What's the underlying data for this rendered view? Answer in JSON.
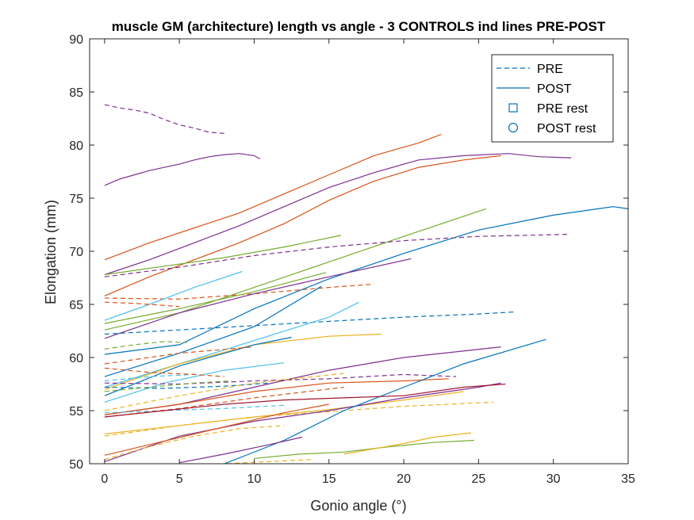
{
  "chart_data": {
    "type": "line",
    "title": "muscle GM (architecture) length vs angle - 3 CONTROLS ind lines PRE-POST",
    "xlabel": "Gonio angle (°)",
    "ylabel": "Elongation (mm)",
    "xlim": [
      -1,
      35
    ],
    "ylim": [
      50,
      90
    ],
    "xticks": [
      0,
      5,
      10,
      15,
      20,
      25,
      30,
      35
    ],
    "yticks": [
      50,
      55,
      60,
      65,
      70,
      75,
      80,
      85,
      90
    ],
    "grid": false,
    "legend_position": "top-right",
    "legend": [
      {
        "label": "PRE",
        "style": "dashed",
        "marker": "none",
        "color": "#0072BD"
      },
      {
        "label": "POST",
        "style": "solid",
        "marker": "none",
        "color": "#0072BD"
      },
      {
        "label": "PRE rest",
        "style": "none",
        "marker": "square",
        "color": "#0072BD"
      },
      {
        "label": "POST rest",
        "style": "none",
        "marker": "circle",
        "color": "#0072BD"
      }
    ],
    "series": [
      {
        "color": "#7E2F8E",
        "style": "dashed",
        "x": [
          0,
          1,
          2,
          3,
          4,
          5,
          6,
          7,
          8
        ],
        "y": [
          83.8,
          83.5,
          83.3,
          83.0,
          82.4,
          81.9,
          81.6,
          81.2,
          81.1
        ]
      },
      {
        "color": "#7E2F8E",
        "style": "solid",
        "x": [
          0,
          1,
          2,
          3,
          4,
          5,
          6,
          7,
          8,
          9,
          10,
          10.4
        ],
        "y": [
          76.2,
          76.8,
          77.2,
          77.6,
          77.9,
          78.2,
          78.6,
          78.9,
          79.1,
          79.2,
          79.0,
          78.7
        ]
      },
      {
        "color": "#D95319",
        "style": "solid",
        "x": [
          0,
          3,
          6,
          9,
          12,
          15,
          18,
          21,
          22.5
        ],
        "y": [
          69.2,
          70.8,
          72.2,
          73.6,
          75.4,
          77.2,
          79.0,
          80.2,
          81.0
        ]
      },
      {
        "color": "#7E2F8E",
        "style": "solid",
        "x": [
          0,
          3,
          6,
          9,
          12,
          15,
          18,
          21,
          24,
          27,
          29,
          31.2
        ],
        "y": [
          67.8,
          69.2,
          70.8,
          72.4,
          74.2,
          76.0,
          77.4,
          78.6,
          79.0,
          79.2,
          78.9,
          78.8
        ]
      },
      {
        "color": "#D95319",
        "style": "solid",
        "x": [
          0,
          3,
          6,
          9,
          12,
          15,
          18,
          21,
          24,
          26.5
        ],
        "y": [
          65.8,
          67.6,
          69.2,
          70.8,
          72.6,
          74.8,
          76.6,
          77.9,
          78.6,
          79.0
        ]
      },
      {
        "color": "#77AC30",
        "style": "solid",
        "x": [
          0,
          5,
          10,
          15,
          20,
          25.5
        ],
        "y": [
          62.6,
          64.2,
          66.6,
          69.0,
          71.4,
          74.0
        ]
      },
      {
        "color": "#0072BD",
        "style": "solid",
        "x": [
          0,
          5,
          10,
          15,
          20,
          25,
          30,
          34,
          35
        ],
        "y": [
          60.3,
          61.2,
          64.6,
          67.4,
          69.8,
          72.0,
          73.4,
          74.2,
          74.0
        ]
      },
      {
        "color": "#7E2F8E",
        "style": "dashed",
        "x": [
          0,
          5,
          10,
          15,
          20,
          25,
          31
        ],
        "y": [
          67.6,
          68.5,
          69.6,
          70.4,
          71.0,
          71.4,
          71.6
        ]
      },
      {
        "color": "#77AC30",
        "style": "solid",
        "x": [
          0,
          4,
          8,
          12,
          15.8
        ],
        "y": [
          67.8,
          68.6,
          69.4,
          70.4,
          71.5
        ]
      },
      {
        "color": "#D95319",
        "style": "dashed",
        "x": [
          0,
          5,
          10,
          15,
          18
        ],
        "y": [
          65.6,
          65.5,
          66.0,
          66.6,
          66.9
        ]
      },
      {
        "color": "#4DBEEE",
        "style": "solid",
        "x": [
          0,
          3,
          6,
          9.2
        ],
        "y": [
          63.5,
          65.0,
          66.6,
          68.1
        ]
      },
      {
        "color": "#7E2F8E",
        "style": "solid",
        "x": [
          0,
          5,
          10,
          15,
          20.5
        ],
        "y": [
          61.8,
          64.2,
          66.0,
          67.6,
          69.3
        ]
      },
      {
        "color": "#77AC30",
        "style": "solid",
        "x": [
          0,
          5,
          10,
          14.8
        ],
        "y": [
          63.2,
          64.6,
          66.2,
          68.0
        ]
      },
      {
        "color": "#D95319",
        "style": "dashed",
        "x": [
          0,
          2,
          5
        ],
        "y": [
          65.2,
          65.1,
          64.8
        ]
      },
      {
        "color": "#0072BD",
        "style": "solid",
        "x": [
          0,
          5,
          10,
          14.5
        ],
        "y": [
          58.2,
          60.4,
          62.9,
          66.7
        ]
      },
      {
        "color": "#0072BD",
        "style": "dashed",
        "x": [
          0,
          5,
          10,
          15,
          20,
          25,
          27.5
        ],
        "y": [
          62.2,
          62.6,
          63.0,
          63.4,
          63.8,
          64.1,
          64.3
        ]
      },
      {
        "color": "#4DBEEE",
        "style": "solid",
        "x": [
          0,
          5,
          10,
          15,
          17
        ],
        "y": [
          57.2,
          59.4,
          61.6,
          63.8,
          65.2
        ]
      },
      {
        "color": "#77AC30",
        "style": "dashed",
        "x": [
          0,
          2,
          4,
          5.5
        ],
        "y": [
          60.8,
          61.2,
          61.5,
          61.4
        ]
      },
      {
        "color": "#EDB120",
        "style": "solid",
        "x": [
          0,
          5,
          10,
          15,
          18.5
        ],
        "y": [
          57.0,
          59.4,
          61.2,
          62.0,
          62.2
        ]
      },
      {
        "color": "#0072BD",
        "style": "solid",
        "x": [
          0,
          5,
          10,
          12.5
        ],
        "y": [
          56.4,
          59.2,
          61.2,
          61.9
        ]
      },
      {
        "color": "#D95319",
        "style": "dashed",
        "x": [
          0,
          5,
          10
        ],
        "y": [
          59.4,
          60.4,
          61.0
        ]
      },
      {
        "color": "#4DBEEE",
        "style": "solid",
        "x": [
          0,
          4,
          8,
          12
        ],
        "y": [
          55.8,
          57.6,
          58.8,
          59.5
        ]
      },
      {
        "color": "#7E2F8E",
        "style": "solid",
        "x": [
          0,
          5,
          10,
          15,
          20,
          26.5
        ],
        "y": [
          54.6,
          55.6,
          57.2,
          58.8,
          60.0,
          61.0
        ]
      },
      {
        "color": "#4DBEEE",
        "style": "dashed",
        "x": [
          0,
          3,
          6
        ],
        "y": [
          57.8,
          58.2,
          58.4
        ]
      },
      {
        "color": "#D95319",
        "style": "dashed",
        "x": [
          0,
          3,
          6,
          8
        ],
        "y": [
          59.0,
          58.6,
          58.4,
          58.2
        ]
      },
      {
        "color": "#7E2F8E",
        "style": "dashed",
        "x": [
          0,
          5,
          10,
          15,
          20,
          23.5
        ],
        "y": [
          57.6,
          57.5,
          57.8,
          58.0,
          58.4,
          58.2
        ]
      },
      {
        "color": "#0072BD",
        "style": "dashed",
        "x": [
          0,
          4,
          8,
          11
        ],
        "y": [
          57.2,
          57.1,
          57.3,
          57.6
        ]
      },
      {
        "color": "#D95319",
        "style": "solid",
        "x": [
          0,
          5,
          10,
          15,
          20,
          23
        ],
        "y": [
          54.6,
          55.6,
          56.8,
          57.6,
          57.8,
          58.0
        ]
      },
      {
        "color": "#EDB120",
        "style": "dashed",
        "x": [
          0,
          5,
          10,
          16
        ],
        "y": [
          55.0,
          56.4,
          57.6,
          58.5
        ]
      },
      {
        "color": "#4DBEEE",
        "style": "dashed",
        "x": [
          0,
          4,
          8,
          12
        ],
        "y": [
          54.8,
          55.0,
          55.2,
          55.5
        ]
      },
      {
        "color": "#77AC30",
        "style": "dashed",
        "x": [
          0,
          3,
          6,
          8.5
        ],
        "y": [
          56.8,
          57.2,
          57.6,
          57.8
        ]
      },
      {
        "color": "#EDB120",
        "style": "dashed",
        "x": [
          0,
          5,
          10,
          15,
          20,
          26
        ],
        "y": [
          52.6,
          53.6,
          54.4,
          54.9,
          55.4,
          55.8
        ]
      },
      {
        "color": "#D95319",
        "style": "dashed",
        "x": [
          0,
          5,
          10,
          16
        ],
        "y": [
          54.4,
          55.2,
          56.2,
          57.2
        ]
      },
      {
        "color": "#EDB120",
        "style": "solid",
        "x": [
          0,
          5,
          10,
          15,
          20,
          24
        ],
        "y": [
          52.8,
          53.6,
          54.4,
          55.1,
          56.0,
          56.8
        ]
      },
      {
        "color": "#7E2F8E",
        "style": "solid",
        "x": [
          0,
          5,
          10,
          15,
          20,
          25,
          26.5
        ],
        "y": [
          50.2,
          52.6,
          54.0,
          55.0,
          56.2,
          57.2,
          57.6
        ]
      },
      {
        "color": "#0072BD",
        "style": "solid",
        "x": [
          8,
          12,
          16,
          20,
          24,
          29.5
        ],
        "y": [
          50.0,
          52.2,
          55.0,
          57.2,
          59.4,
          61.7
        ]
      },
      {
        "color": "#D95319",
        "style": "solid",
        "x": [
          0,
          3,
          6,
          9,
          12,
          15
        ],
        "y": [
          50.8,
          51.8,
          52.8,
          53.8,
          54.8,
          55.6
        ]
      },
      {
        "color": "#EDB120",
        "style": "dashed",
        "x": [
          0,
          3,
          6,
          9,
          12
        ],
        "y": [
          50.4,
          51.6,
          52.6,
          53.3,
          53.6
        ]
      },
      {
        "color": "#A2142F",
        "style": "solid",
        "x": [
          0,
          4,
          8,
          12,
          16,
          20,
          24,
          26.8
        ],
        "y": [
          54.4,
          55.0,
          55.6,
          56.0,
          56.2,
          56.4,
          57.2,
          57.5
        ]
      },
      {
        "color": "#7E2F8E",
        "style": "solid",
        "x": [
          5,
          8,
          11,
          13.2
        ],
        "y": [
          50.1,
          50.9,
          51.8,
          52.5
        ]
      },
      {
        "color": "#77AC30",
        "style": "solid",
        "x": [
          10,
          13,
          16,
          19,
          22,
          24.7
        ],
        "y": [
          50.5,
          50.9,
          51.1,
          51.6,
          52.0,
          52.2
        ]
      },
      {
        "color": "#EDB120",
        "style": "solid",
        "x": [
          16,
          18,
          20,
          22,
          24.5
        ],
        "y": [
          50.9,
          51.4,
          51.9,
          52.5,
          52.9
        ]
      },
      {
        "color": "#EDB120",
        "style": "dashed",
        "x": [
          5,
          8,
          11,
          14
        ],
        "y": [
          49.8,
          50.0,
          50.2,
          50.4
        ]
      }
    ]
  }
}
